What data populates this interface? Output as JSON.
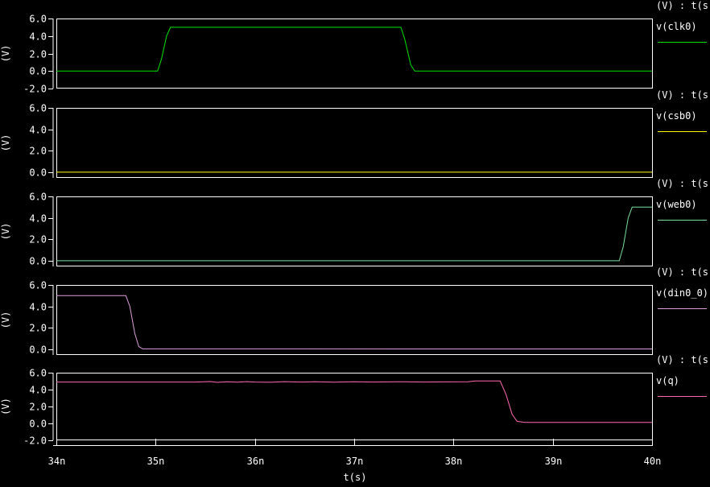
{
  "window": {
    "background": "#000000",
    "foreground": "#ffffff"
  },
  "chart_data": {
    "type": "line",
    "xlabel": "t(s)",
    "x_unit": "n",
    "xlim": [
      34,
      40
    ],
    "grid": false,
    "legend_position": "right",
    "xticks": [
      {
        "label": "34n",
        "t": 34
      },
      {
        "label": "35n",
        "t": 35
      },
      {
        "label": "36n",
        "t": 36
      },
      {
        "label": "37n",
        "t": 37
      },
      {
        "label": "38n",
        "t": 38
      },
      {
        "label": "39n",
        "t": 39
      },
      {
        "label": "40n",
        "t": 40
      }
    ],
    "panels": [
      {
        "header": "(V) : t(s)",
        "name": "v(clk0)",
        "ylabel": "(V)",
        "color": "#00e400",
        "ylim": [
          -2,
          6
        ],
        "yticks": [
          {
            "label": "6.0",
            "v": 6
          },
          {
            "label": "4.0",
            "v": 4
          },
          {
            "label": "2.0",
            "v": 2
          },
          {
            "label": "0.0",
            "v": 0
          },
          {
            "label": "-2.0",
            "v": -2
          }
        ],
        "points": [
          [
            34,
            0
          ],
          [
            35.02,
            0
          ],
          [
            35.06,
            1.4
          ],
          [
            35.11,
            4.0
          ],
          [
            35.15,
            5
          ],
          [
            37.47,
            5
          ],
          [
            37.51,
            3.6
          ],
          [
            37.57,
            0.7
          ],
          [
            37.61,
            0
          ],
          [
            40,
            0
          ]
        ]
      },
      {
        "header": "(V) : t(s)",
        "name": "v(csb0)",
        "ylabel": "(V)",
        "color": "#ffff00",
        "ylim": [
          -0.53,
          6
        ],
        "yticks": [
          {
            "label": "6.0",
            "v": 6
          },
          {
            "label": "4.0",
            "v": 4
          },
          {
            "label": "2.0",
            "v": 2
          },
          {
            "label": "0.0",
            "v": 0
          }
        ],
        "points": [
          [
            34,
            0
          ],
          [
            40,
            0
          ]
        ]
      },
      {
        "header": "(V) : t(s)",
        "name": "v(web0)",
        "ylabel": "(V)",
        "color": "#7be09e",
        "ylim": [
          -0.53,
          6
        ],
        "yticks": [
          {
            "label": "6.0",
            "v": 6
          },
          {
            "label": "4.0",
            "v": 4
          },
          {
            "label": "2.0",
            "v": 2
          },
          {
            "label": "0.0",
            "v": 0
          }
        ],
        "points": [
          [
            34,
            0
          ],
          [
            39.67,
            0
          ],
          [
            39.71,
            1.3
          ],
          [
            39.76,
            4.0
          ],
          [
            39.8,
            5
          ],
          [
            40,
            5
          ]
        ]
      },
      {
        "header": "(V) : t(s)",
        "name": "v(din0_0)",
        "ylabel": "(V)",
        "color": "#dda0dd",
        "ylim": [
          -0.53,
          6
        ],
        "yticks": [
          {
            "label": "6.0",
            "v": 6
          },
          {
            "label": "4.0",
            "v": 4
          },
          {
            "label": "2.0",
            "v": 2
          },
          {
            "label": "0.0",
            "v": 0
          }
        ],
        "points": [
          [
            34,
            5
          ],
          [
            34.7,
            5
          ],
          [
            34.74,
            4.0
          ],
          [
            34.79,
            1.5
          ],
          [
            34.83,
            0.25
          ],
          [
            34.87,
            0.04
          ],
          [
            40,
            0.03
          ]
        ]
      },
      {
        "header": "(V) : t(s)",
        "name": "v(q)",
        "ylabel": "(V)",
        "color": "#ff69b4",
        "ylim": [
          -2,
          6
        ],
        "yticks": [
          {
            "label": "6.0",
            "v": 6
          },
          {
            "label": "4.0",
            "v": 4
          },
          {
            "label": "2.0",
            "v": 2
          },
          {
            "label": "0.0",
            "v": 0
          },
          {
            "label": "-2.0",
            "v": -2
          }
        ],
        "points": [
          [
            34,
            4.9
          ],
          [
            35.4,
            4.9
          ],
          [
            35.55,
            4.95
          ],
          [
            35.62,
            4.86
          ],
          [
            35.72,
            4.93
          ],
          [
            35.82,
            4.88
          ],
          [
            35.92,
            4.94
          ],
          [
            36.0,
            4.9
          ],
          [
            36.15,
            4.87
          ],
          [
            36.3,
            4.94
          ],
          [
            36.45,
            4.9
          ],
          [
            36.6,
            4.92
          ],
          [
            36.8,
            4.89
          ],
          [
            37.0,
            4.93
          ],
          [
            37.2,
            4.9
          ],
          [
            37.45,
            4.92
          ],
          [
            37.7,
            4.9
          ],
          [
            37.95,
            4.91
          ],
          [
            38.15,
            4.93
          ],
          [
            38.22,
            5.02
          ],
          [
            38.47,
            5.02
          ],
          [
            38.53,
            3.4
          ],
          [
            38.59,
            1.1
          ],
          [
            38.64,
            0.25
          ],
          [
            38.72,
            0.12
          ],
          [
            40,
            0.12
          ]
        ]
      }
    ]
  }
}
